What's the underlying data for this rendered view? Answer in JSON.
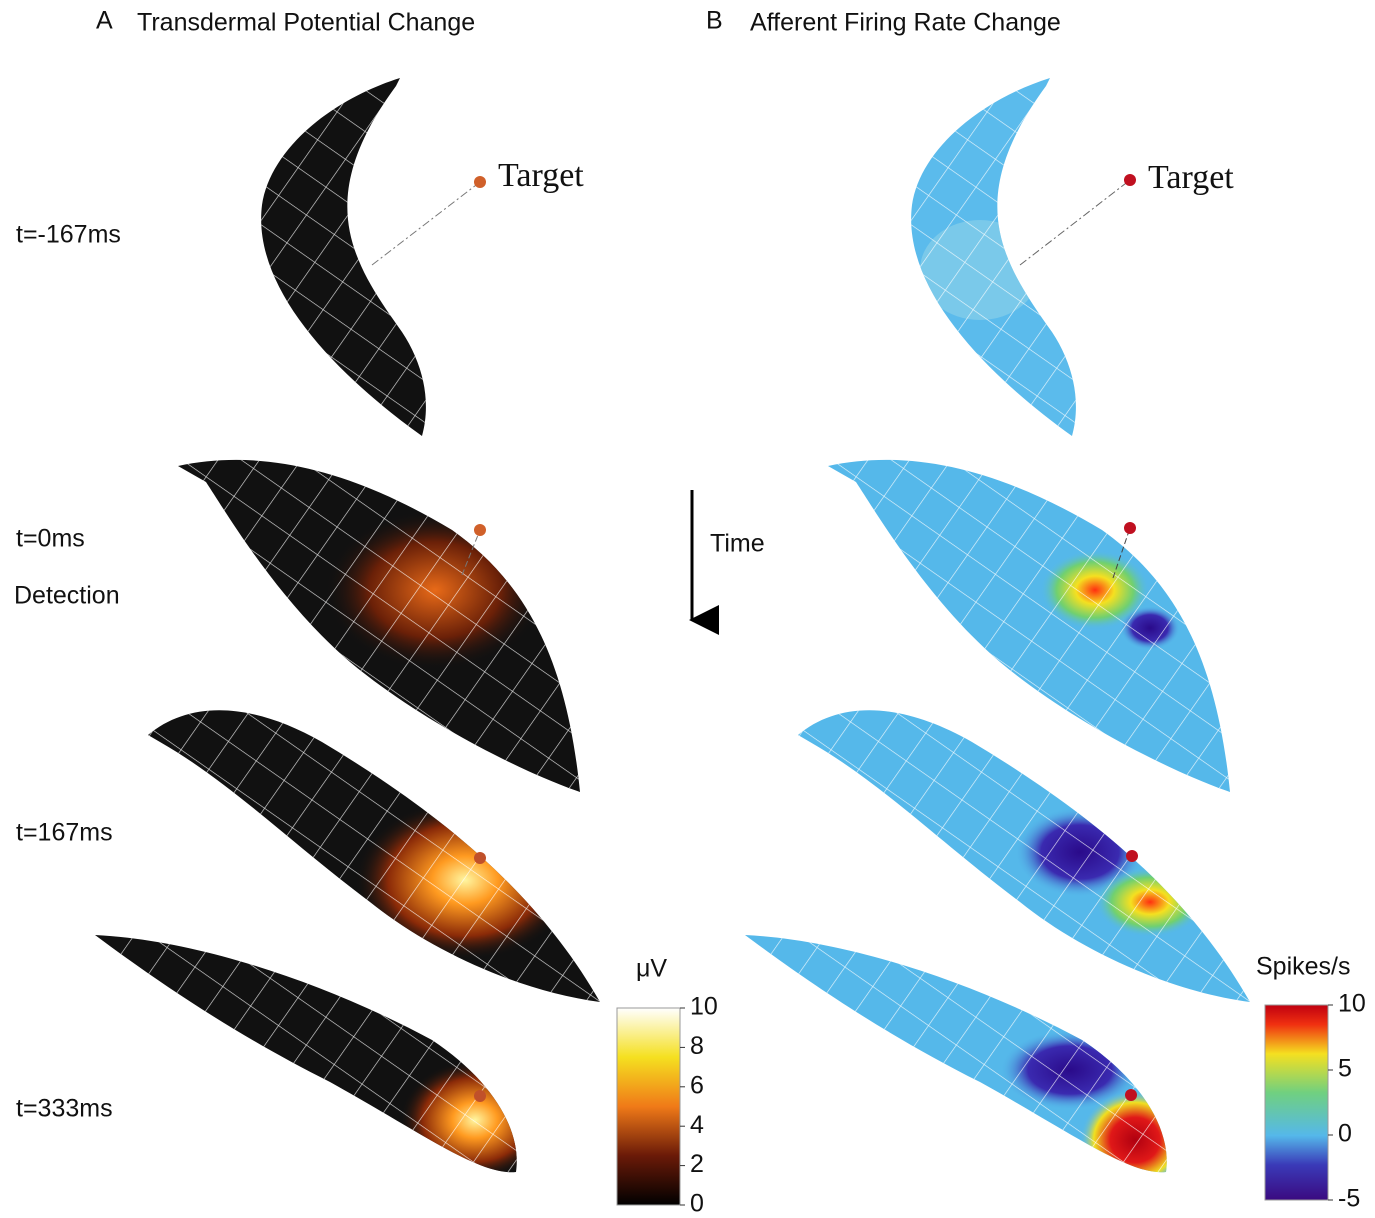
{
  "panel_a": {
    "letter": "A",
    "title": "Transdermal Potential Change",
    "target_label": "Target",
    "colorbar": {
      "label": "μV",
      "lim": [
        0,
        10
      ],
      "ticks": [
        0,
        2,
        4,
        6,
        8,
        10
      ]
    }
  },
  "panel_b": {
    "letter": "B",
    "title": "Afferent Firing Rate Change",
    "target_label": "Target",
    "colorbar": {
      "label": "Spikes/s",
      "lim": [
        -5,
        10
      ],
      "ticks": [
        -5,
        0,
        5,
        10
      ]
    }
  },
  "time_labels": [
    "t=-167ms",
    "t=0ms",
    "t=167ms",
    "t=333ms"
  ],
  "event_label": "Detection",
  "time_arrow_label": "Time"
}
